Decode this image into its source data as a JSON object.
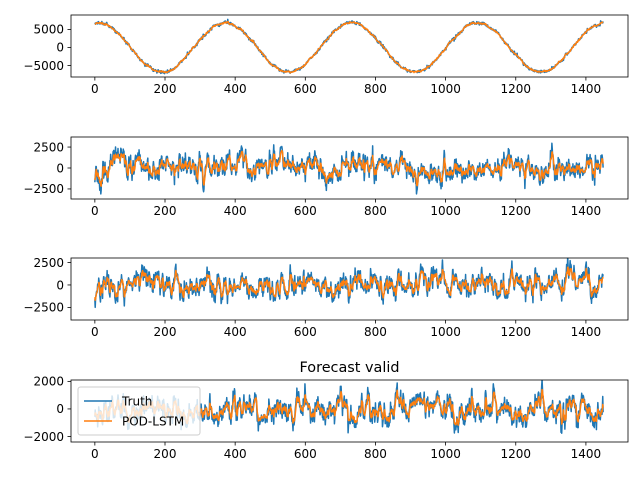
{
  "colors": {
    "truth": "#1f77b4",
    "forecast": "#ff7f0e"
  },
  "chart_data": [
    {
      "type": "line",
      "title": "",
      "xlim": [
        -68,
        1520
      ],
      "ylim": [
        -8200,
        9000
      ],
      "xticks": [
        0,
        200,
        400,
        600,
        800,
        1000,
        1200,
        1400
      ],
      "yticks": [
        -5000,
        0,
        5000
      ],
      "signal": {
        "kind": "sine",
        "amplitude": 6800,
        "period": 360,
        "phase_deg": 78,
        "noise": 550,
        "smooth_noise": 300,
        "seed": 11
      },
      "series": [
        {
          "name": "Truth",
          "values_note": ""
        },
        {
          "name": "POD-LSTM"
        }
      ]
    },
    {
      "type": "line",
      "title": "",
      "xlim": [
        -68,
        1520
      ],
      "ylim": [
        -3700,
        3700
      ],
      "xticks": [
        0,
        200,
        400,
        600,
        800,
        1000,
        1200,
        1400
      ],
      "yticks": [
        -2500,
        0,
        2500
      ],
      "signal": {
        "kind": "noise",
        "amplitude": 900,
        "seed": 23,
        "start": -1000
      },
      "series": [
        {
          "name": "Truth"
        },
        {
          "name": "POD-LSTM"
        }
      ]
    },
    {
      "type": "line",
      "title": "",
      "xlim": [
        -68,
        1520
      ],
      "ylim": [
        -3900,
        3000
      ],
      "xticks": [
        0,
        200,
        400,
        600,
        800,
        1000,
        1200,
        1400
      ],
      "yticks": [
        -2500,
        0,
        2500
      ],
      "signal": {
        "kind": "noise",
        "amplitude": 850,
        "seed": 37,
        "start": -2000
      },
      "series": [
        {
          "name": "Truth"
        },
        {
          "name": "POD-LSTM"
        }
      ]
    },
    {
      "type": "line",
      "title": "Forecast valid",
      "xlim": [
        -68,
        1520
      ],
      "ylim": [
        -2400,
        2100
      ],
      "xticks": [
        0,
        200,
        400,
        600,
        800,
        1000,
        1200,
        1400
      ],
      "yticks": [
        -2000,
        0,
        2000
      ],
      "signal": {
        "kind": "noise",
        "amplitude": 620,
        "seed": 53,
        "start": -900
      },
      "legend": {
        "position": "upper-left",
        "entries": [
          "Truth",
          "POD-LSTM"
        ]
      },
      "series": [
        {
          "name": "Truth"
        },
        {
          "name": "POD-LSTM"
        }
      ]
    }
  ]
}
